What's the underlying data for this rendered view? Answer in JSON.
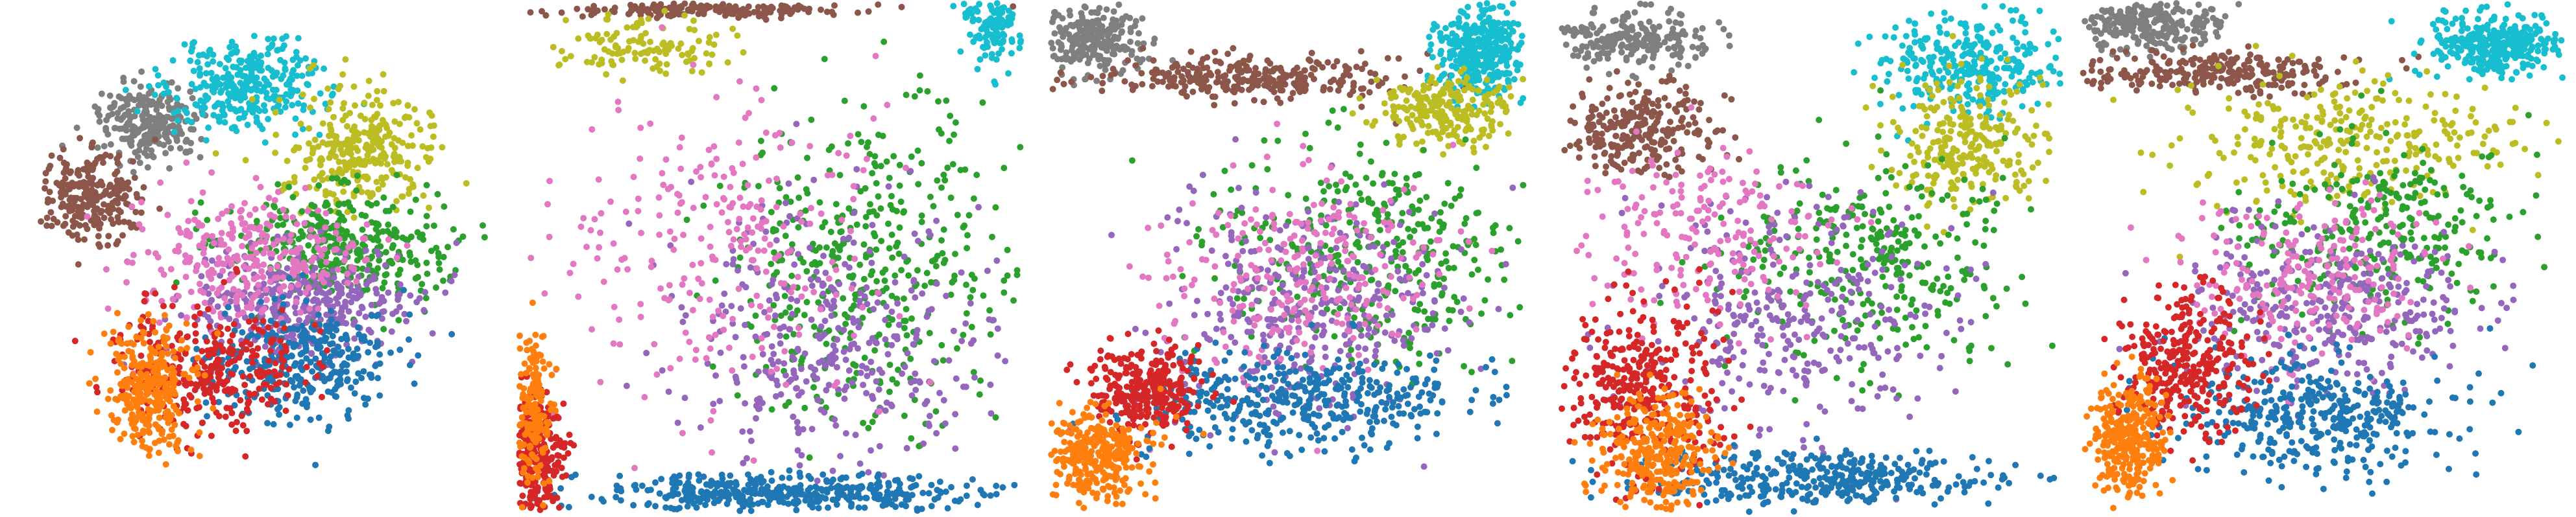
{
  "figure": {
    "panel_count": 5,
    "axes_visible": false,
    "background": "#ffffff"
  },
  "chart_data": [
    {
      "type": "scatter",
      "title": "",
      "xlabel": "",
      "ylabel": "",
      "grid": false,
      "legend": "none",
      "series": [
        {
          "color": "#7f7f7f"
        },
        {
          "color": "#8c564b"
        },
        {
          "color": "#17becf"
        },
        {
          "color": "#bcbd22"
        },
        {
          "color": "#2ca02c"
        },
        {
          "color": "#9467bd"
        },
        {
          "color": "#e377c2"
        },
        {
          "color": "#1f77b4"
        },
        {
          "color": "#d62728"
        },
        {
          "color": "#ff7f0e"
        }
      ]
    },
    {
      "type": "scatter",
      "title": "",
      "xlabel": "",
      "ylabel": "",
      "grid": false,
      "legend": "none",
      "series": [
        {
          "color": "#8c564b"
        },
        {
          "color": "#17becf"
        },
        {
          "color": "#bcbd22"
        },
        {
          "color": "#2ca02c"
        },
        {
          "color": "#9467bd"
        },
        {
          "color": "#e377c2"
        },
        {
          "color": "#1f77b4"
        },
        {
          "color": "#d62728"
        },
        {
          "color": "#ff7f0e"
        }
      ]
    },
    {
      "type": "scatter",
      "title": "",
      "xlabel": "",
      "ylabel": "",
      "grid": false,
      "legend": "none",
      "series": [
        {
          "color": "#7f7f7f"
        },
        {
          "color": "#8c564b"
        },
        {
          "color": "#17becf"
        },
        {
          "color": "#bcbd22"
        },
        {
          "color": "#2ca02c"
        },
        {
          "color": "#9467bd"
        },
        {
          "color": "#e377c2"
        },
        {
          "color": "#1f77b4"
        },
        {
          "color": "#d62728"
        },
        {
          "color": "#ff7f0e"
        }
      ]
    },
    {
      "type": "scatter",
      "title": "",
      "xlabel": "",
      "ylabel": "",
      "grid": false,
      "legend": "none",
      "series": [
        {
          "color": "#7f7f7f"
        },
        {
          "color": "#8c564b"
        },
        {
          "color": "#17becf"
        },
        {
          "color": "#bcbd22"
        },
        {
          "color": "#2ca02c"
        },
        {
          "color": "#9467bd"
        },
        {
          "color": "#e377c2"
        },
        {
          "color": "#1f77b4"
        },
        {
          "color": "#d62728"
        },
        {
          "color": "#ff7f0e"
        }
      ]
    },
    {
      "type": "scatter",
      "title": "",
      "xlabel": "",
      "ylabel": "",
      "grid": false,
      "legend": "none",
      "series": [
        {
          "color": "#7f7f7f"
        },
        {
          "color": "#8c564b"
        },
        {
          "color": "#17becf"
        },
        {
          "color": "#bcbd22"
        },
        {
          "color": "#2ca02c"
        },
        {
          "color": "#9467bd"
        },
        {
          "color": "#e377c2"
        },
        {
          "color": "#1f77b4"
        },
        {
          "color": "#d62728"
        },
        {
          "color": "#ff7f0e"
        }
      ]
    }
  ]
}
